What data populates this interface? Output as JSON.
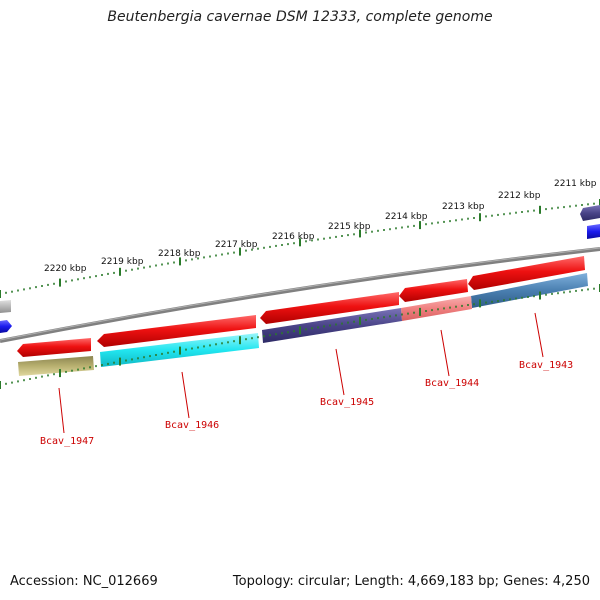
{
  "title": "Beutenbergia cavernae DSM 12333, complete genome",
  "footer": {
    "accession": "Accession: NC_012669",
    "summary": "Topology: circular; Length: 4,669,183 bp; Genes: 4,250"
  },
  "ticks": [
    {
      "label": "2211 kbp"
    },
    {
      "label": "2212 kbp"
    },
    {
      "label": "2213 kbp"
    },
    {
      "label": "2214 kbp"
    },
    {
      "label": "2215 kbp"
    },
    {
      "label": "2216 kbp"
    },
    {
      "label": "2217 kbp"
    },
    {
      "label": "2218 kbp"
    },
    {
      "label": "2219 kbp"
    },
    {
      "label": "2220 kbp"
    }
  ],
  "gene_labels": [
    {
      "name": "Bcav_1943"
    },
    {
      "name": "Bcav_1944"
    },
    {
      "name": "Bcav_1945"
    },
    {
      "name": "Bcav_1946"
    },
    {
      "name": "Bcav_1947"
    }
  ],
  "colors": {
    "forward_gene": "#ee1111",
    "backbone": "#808080",
    "tick": "#2a7a2a",
    "gene_label": "#cc0000",
    "cds_navy": "#4a4488",
    "cds_salmon": "#f08080",
    "cds_steel": "#4a7fb0",
    "cds_cyan": "#22e6f0",
    "cds_khaki": "#b8b070",
    "cds_blue": "#1a1aee",
    "cds_gray": "#b8b8b8"
  }
}
